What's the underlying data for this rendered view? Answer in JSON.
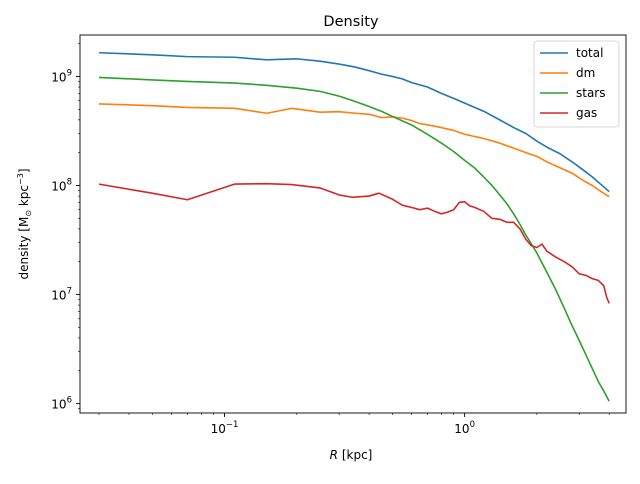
{
  "chart_data": {
    "type": "line",
    "title": "Density",
    "xlabel_italic": "R",
    "xlabel_rest": " [kpc]",
    "ylabel_parts": [
      "density [M",
      "⊙",
      " kpc",
      "−3",
      "]"
    ],
    "xscale": "log",
    "yscale": "log",
    "xlim": [
      0.025,
      4.7
    ],
    "ylim": [
      820000,
      2400000000
    ],
    "x_major_ticks": [
      {
        "value": 0.1,
        "base": "10",
        "exp": "−1"
      },
      {
        "value": 1,
        "base": "10",
        "exp": "0"
      }
    ],
    "x_minor_ticks": [
      0.03,
      0.04,
      0.05,
      0.06,
      0.07,
      0.08,
      0.09,
      0.2,
      0.3,
      0.4,
      0.5,
      0.6,
      0.7,
      0.8,
      0.9,
      2,
      3,
      4
    ],
    "y_major_ticks": [
      {
        "value": 1000000,
        "base": "10",
        "exp": "6"
      },
      {
        "value": 10000000,
        "base": "10",
        "exp": "7"
      },
      {
        "value": 100000000,
        "base": "10",
        "exp": "8"
      },
      {
        "value": 1000000000,
        "base": "10",
        "exp": "9"
      }
    ],
    "grid": false,
    "legend_position": "top-right",
    "series": [
      {
        "name": "total",
        "color": "#1f77b4",
        "points": [
          [
            0.03,
            1650000000.0
          ],
          [
            0.05,
            1580000000.0
          ],
          [
            0.07,
            1520000000.0
          ],
          [
            0.11,
            1500000000.0
          ],
          [
            0.15,
            1420000000.0
          ],
          [
            0.2,
            1450000000.0
          ],
          [
            0.25,
            1380000000.0
          ],
          [
            0.3,
            1300000000.0
          ],
          [
            0.35,
            1220000000.0
          ],
          [
            0.4,
            1130000000.0
          ],
          [
            0.45,
            1050000000.0
          ],
          [
            0.5,
            1000000000.0
          ],
          [
            0.55,
            950000000.0
          ],
          [
            0.6,
            880000000.0
          ],
          [
            0.7,
            800000000.0
          ],
          [
            0.8,
            700000000.0
          ],
          [
            0.9,
            630000000.0
          ],
          [
            1.0,
            570000000.0
          ],
          [
            1.2,
            480000000.0
          ],
          [
            1.4,
            400000000.0
          ],
          [
            1.6,
            340000000.0
          ],
          [
            1.8,
            300000000.0
          ],
          [
            2.0,
            255000000.0
          ],
          [
            2.2,
            225000000.0
          ],
          [
            2.5,
            195000000.0
          ],
          [
            2.8,
            165000000.0
          ],
          [
            3.1,
            140000000.0
          ],
          [
            3.4,
            120000000.0
          ],
          [
            3.7,
            102000000.0
          ],
          [
            4.0,
            88000000.0
          ]
        ]
      },
      {
        "name": "dm",
        "color": "#ff7f0e",
        "points": [
          [
            0.03,
            560000000.0
          ],
          [
            0.05,
            540000000.0
          ],
          [
            0.07,
            520000000.0
          ],
          [
            0.11,
            510000000.0
          ],
          [
            0.15,
            460000000.0
          ],
          [
            0.19,
            510000000.0
          ],
          [
            0.25,
            470000000.0
          ],
          [
            0.3,
            475000000.0
          ],
          [
            0.35,
            460000000.0
          ],
          [
            0.4,
            450000000.0
          ],
          [
            0.45,
            420000000.0
          ],
          [
            0.5,
            425000000.0
          ],
          [
            0.55,
            415000000.0
          ],
          [
            0.6,
            395000000.0
          ],
          [
            0.65,
            370000000.0
          ],
          [
            0.7,
            360000000.0
          ],
          [
            0.8,
            340000000.0
          ],
          [
            0.9,
            320000000.0
          ],
          [
            1.0,
            295000000.0
          ],
          [
            1.2,
            270000000.0
          ],
          [
            1.4,
            245000000.0
          ],
          [
            1.6,
            220000000.0
          ],
          [
            1.8,
            200000000.0
          ],
          [
            2.0,
            185000000.0
          ],
          [
            2.2,
            165000000.0
          ],
          [
            2.5,
            145000000.0
          ],
          [
            2.8,
            130000000.0
          ],
          [
            3.1,
            112000000.0
          ],
          [
            3.4,
            100000000.0
          ],
          [
            3.7,
            88000000.0
          ],
          [
            4.0,
            79000000.0
          ]
        ]
      },
      {
        "name": "stars",
        "color": "#2ca02c",
        "points": [
          [
            0.03,
            980000000.0
          ],
          [
            0.05,
            930000000.0
          ],
          [
            0.07,
            900000000.0
          ],
          [
            0.11,
            870000000.0
          ],
          [
            0.15,
            830000000.0
          ],
          [
            0.2,
            780000000.0
          ],
          [
            0.25,
            730000000.0
          ],
          [
            0.3,
            660000000.0
          ],
          [
            0.35,
            590000000.0
          ],
          [
            0.4,
            530000000.0
          ],
          [
            0.45,
            480000000.0
          ],
          [
            0.5,
            430000000.0
          ],
          [
            0.6,
            360000000.0
          ],
          [
            0.7,
            295000000.0
          ],
          [
            0.8,
            245000000.0
          ],
          [
            0.9,
            205000000.0
          ],
          [
            1.0,
            170000000.0
          ],
          [
            1.1,
            145000000.0
          ],
          [
            1.2,
            120000000.0
          ],
          [
            1.3,
            100000000.0
          ],
          [
            1.4,
            82000000.0
          ],
          [
            1.5,
            68000000.0
          ],
          [
            1.6,
            55000000.0
          ],
          [
            1.7,
            44000000.0
          ],
          [
            1.8,
            35000000.0
          ],
          [
            1.9,
            29000000.0
          ],
          [
            2.0,
            24000000.0
          ],
          [
            2.2,
            16000000.0
          ],
          [
            2.4,
            11000000.0
          ],
          [
            2.6,
            7500000.0
          ],
          [
            2.8,
            5200000.0
          ],
          [
            3.0,
            3800000.0
          ],
          [
            3.2,
            2800000.0
          ],
          [
            3.4,
            2100000.0
          ],
          [
            3.6,
            1600000.0
          ],
          [
            3.8,
            1300000.0
          ],
          [
            4.0,
            1050000.0
          ]
        ]
      },
      {
        "name": "gas",
        "color": "#d62728",
        "points": [
          [
            0.03,
            103000000.0
          ],
          [
            0.05,
            85000000.0
          ],
          [
            0.07,
            74000000.0
          ],
          [
            0.11,
            103000000.0
          ],
          [
            0.15,
            104000000.0
          ],
          [
            0.19,
            102000000.0
          ],
          [
            0.25,
            95000000.0
          ],
          [
            0.3,
            82000000.0
          ],
          [
            0.34,
            78000000.0
          ],
          [
            0.4,
            80000000.0
          ],
          [
            0.44,
            85000000.0
          ],
          [
            0.5,
            75000000.0
          ],
          [
            0.55,
            66000000.0
          ],
          [
            0.6,
            63000000.0
          ],
          [
            0.65,
            60000000.0
          ],
          [
            0.7,
            62000000.0
          ],
          [
            0.75,
            58000000.0
          ],
          [
            0.8,
            55000000.0
          ],
          [
            0.85,
            57000000.0
          ],
          [
            0.9,
            60000000.0
          ],
          [
            0.95,
            70000000.0
          ],
          [
            1.0,
            71000000.0
          ],
          [
            1.05,
            65000000.0
          ],
          [
            1.1,
            63000000.0
          ],
          [
            1.2,
            58000000.0
          ],
          [
            1.3,
            50000000.0
          ],
          [
            1.4,
            49000000.0
          ],
          [
            1.5,
            46000000.0
          ],
          [
            1.6,
            46000000.0
          ],
          [
            1.7,
            40000000.0
          ],
          [
            1.8,
            32000000.0
          ],
          [
            1.9,
            28000000.0
          ],
          [
            2.0,
            27000000.0
          ],
          [
            2.1,
            29000000.0
          ],
          [
            2.2,
            25000000.0
          ],
          [
            2.4,
            22000000.0
          ],
          [
            2.6,
            20000000.0
          ],
          [
            2.8,
            18000000.0
          ],
          [
            3.0,
            15500000.0
          ],
          [
            3.2,
            15000000.0
          ],
          [
            3.4,
            14000000.0
          ],
          [
            3.6,
            13500000.0
          ],
          [
            3.8,
            12000000.0
          ],
          [
            3.9,
            9500000.0
          ],
          [
            4.0,
            8300000.0
          ]
        ]
      }
    ]
  }
}
